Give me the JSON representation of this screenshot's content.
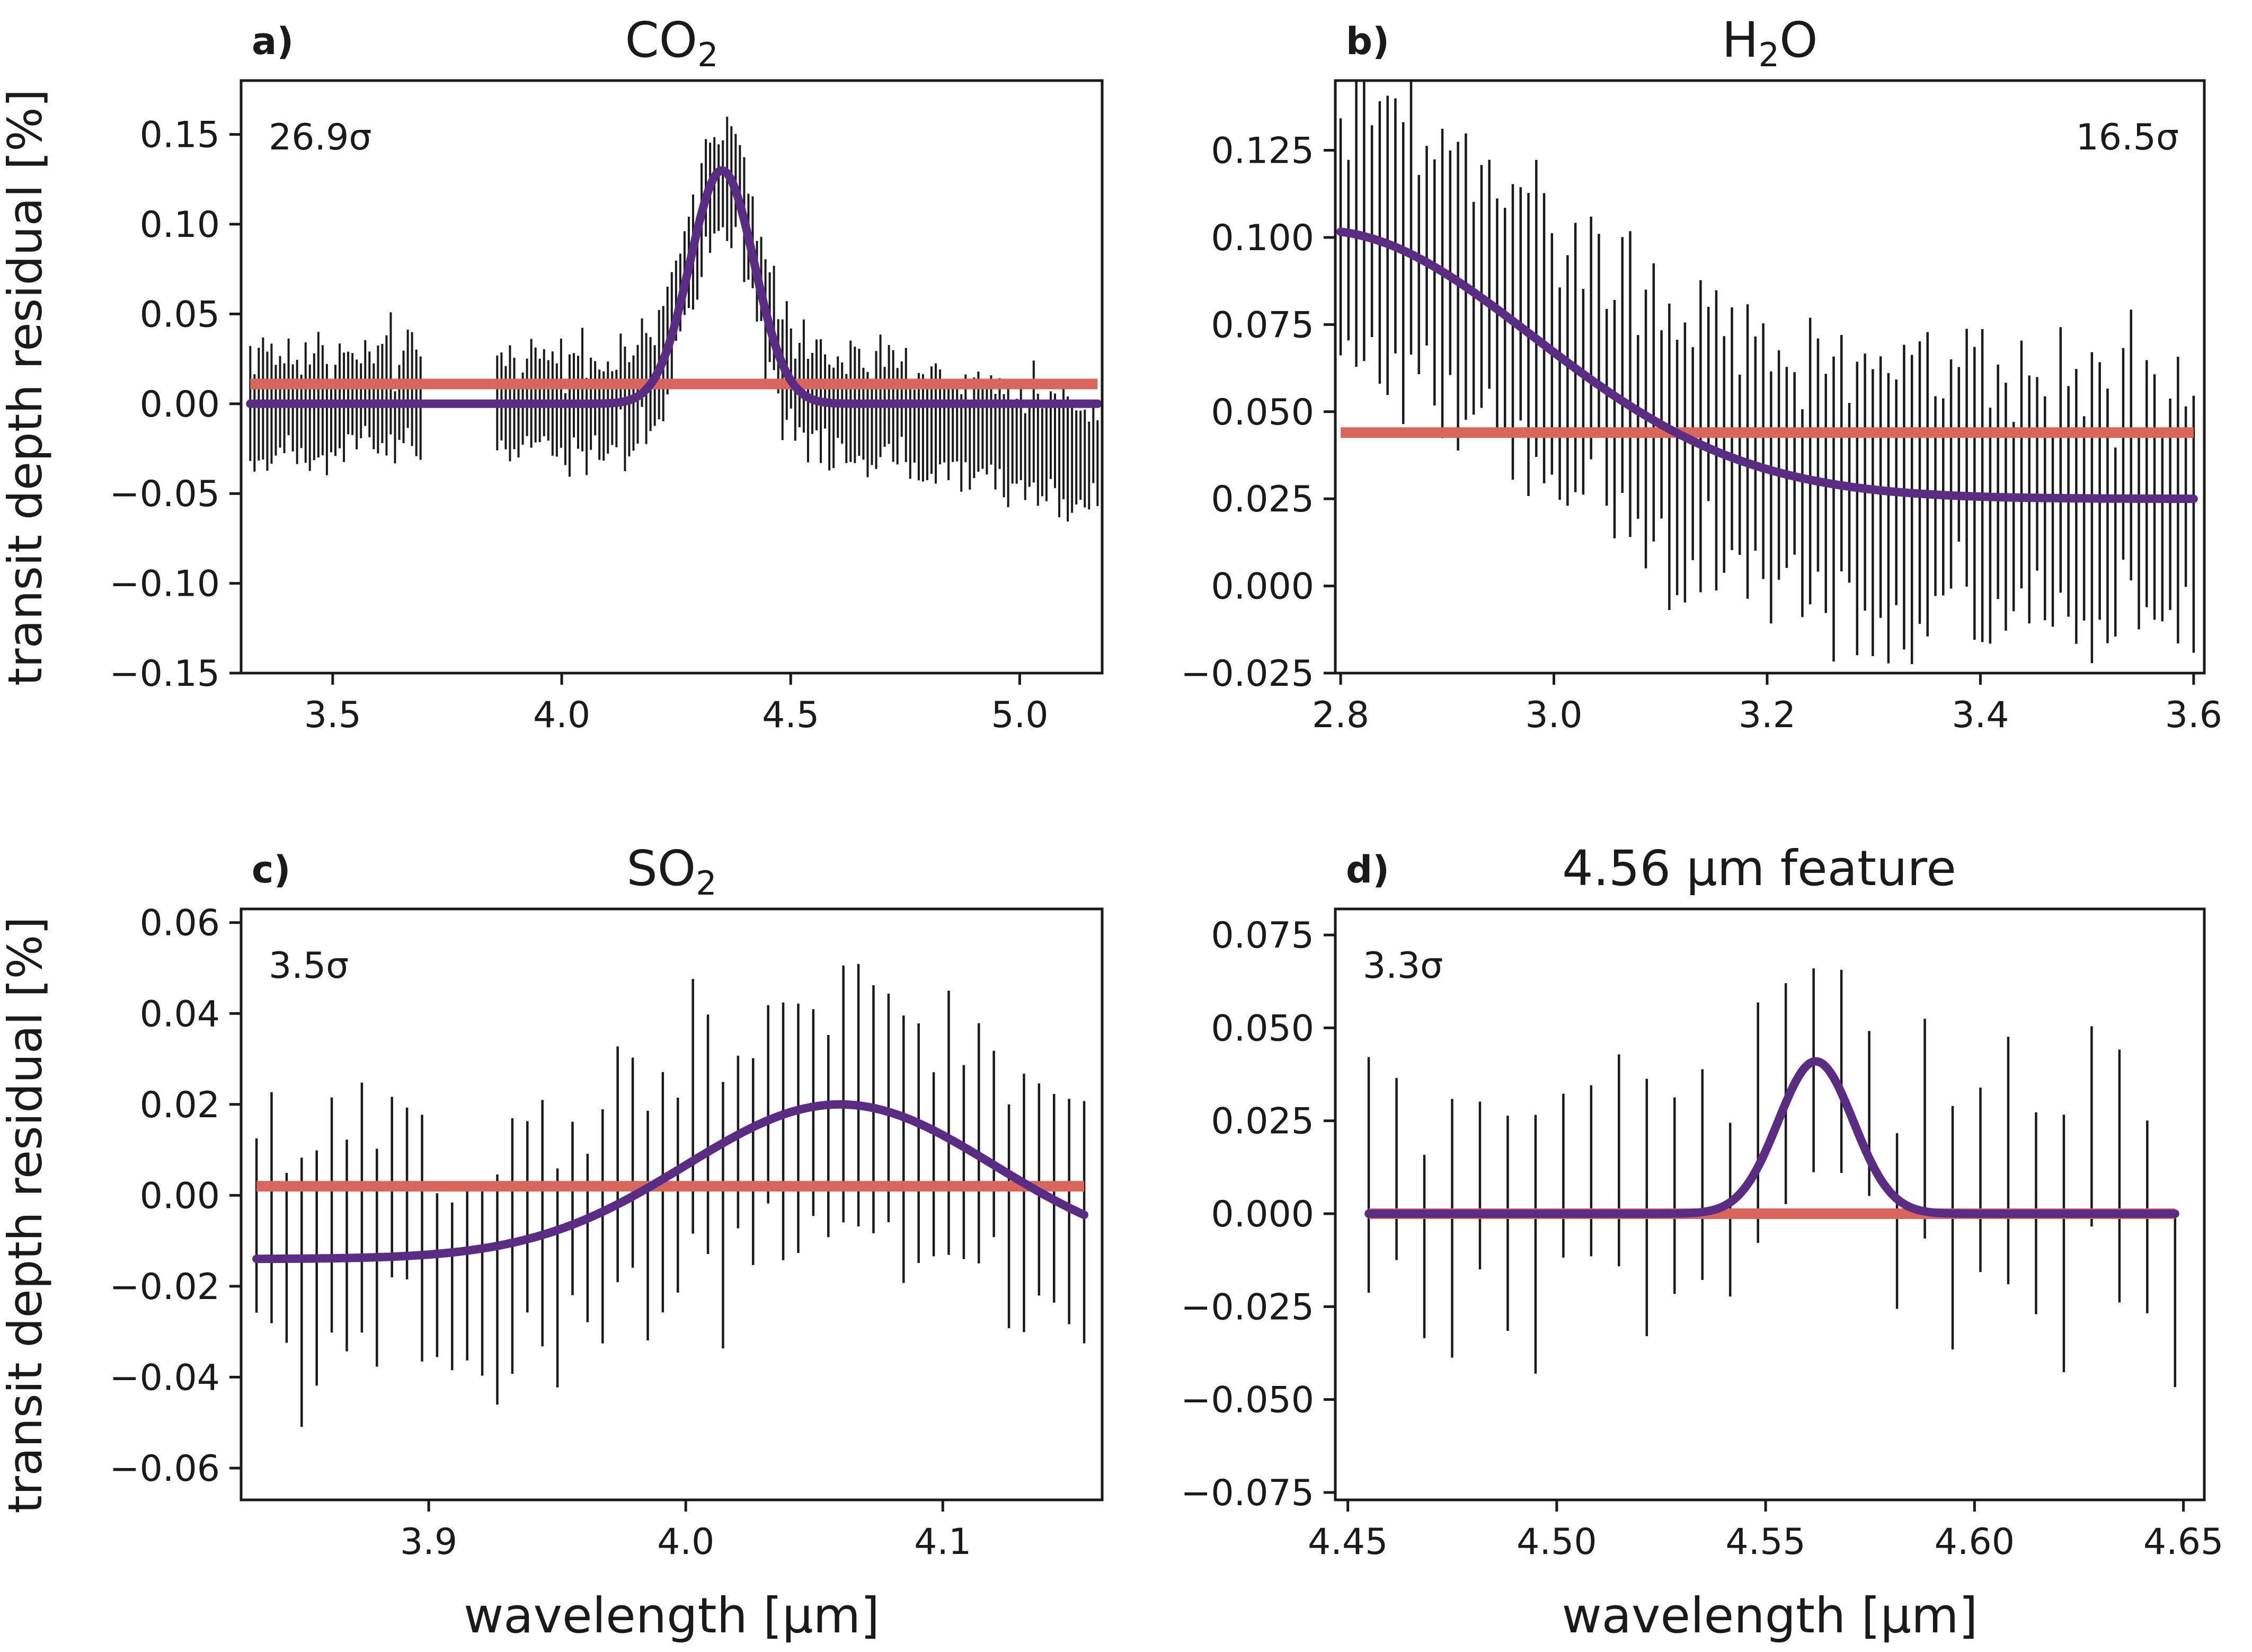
{
  "figure": {
    "ylabel": "transit depth residual [%]",
    "xlabel": "wavelength [µm]"
  },
  "colors": {
    "data": "#1a1a1a",
    "gaussian_fit": "#5b2c83",
    "flat_fit": "#d9665c",
    "frame": "#1a1a1a"
  },
  "chart_data": [
    {
      "type": "line",
      "panel_label": "a)",
      "title_main": "CO",
      "title_sub": "2",
      "title_tail": "",
      "significance": "26.9σ",
      "significance_position": "top-left",
      "xlabel": "",
      "ylabel": "transit depth residual [%]",
      "xlim": [
        3.3,
        5.18
      ],
      "ylim": [
        -0.15,
        0.18
      ],
      "xticks": [
        3.5,
        4.0,
        4.5,
        5.0
      ],
      "xtick_labels": [
        "3.5",
        "4.0",
        "4.5",
        "5.0"
      ],
      "yticks": [
        -0.15,
        -0.1,
        -0.05,
        0.0,
        0.05,
        0.1,
        0.15
      ],
      "ytick_labels": [
        "−0.15",
        "−0.10",
        "−0.05",
        "0.00",
        "0.05",
        "0.10",
        "0.15"
      ],
      "grid": false,
      "errorbars": {
        "x_start": 3.32,
        "x_end": 5.17,
        "count": 200,
        "gaps": [
          [
            3.7,
            3.85
          ]
        ],
        "err_range": [
          0.02,
          0.035
        ],
        "model": {
          "baseline": 0.0,
          "amplitude": 0.13,
          "center": 4.35,
          "sigma": 0.07,
          "slope_start": 4.6,
          "slope": -0.03
        },
        "scatter": 0.012
      },
      "series": [
        {
          "role": "gaussian",
          "x_range": [
            3.32,
            5.17
          ],
          "baseline": 0.0,
          "amplitude": 0.13,
          "center": 4.35,
          "sigma": 0.07
        },
        {
          "role": "flat",
          "x_range": [
            3.32,
            5.17
          ],
          "value": 0.011
        }
      ]
    },
    {
      "type": "line",
      "panel_label": "b)",
      "title_main": "H",
      "title_sub": "2",
      "title_tail": "O",
      "significance": "16.5σ",
      "significance_position": "top-right",
      "xlabel": "",
      "ylabel": "",
      "xlim": [
        2.795,
        3.61
      ],
      "ylim": [
        -0.025,
        0.145
      ],
      "xticks": [
        2.8,
        3.0,
        3.2,
        3.4,
        3.6
      ],
      "xtick_labels": [
        "2.8",
        "3.0",
        "3.2",
        "3.4",
        "3.6"
      ],
      "yticks": [
        -0.025,
        0.0,
        0.025,
        0.05,
        0.075,
        0.1,
        0.125
      ],
      "ytick_labels": [
        "−0.025",
        "0.000",
        "0.025",
        "0.050",
        "0.075",
        "0.100",
        "0.125"
      ],
      "grid": false,
      "errorbars": {
        "x_start": 2.8,
        "x_end": 3.6,
        "count": 110,
        "gaps": [],
        "err_range": [
          0.025,
          0.045
        ],
        "model": {
          "baseline": 0.025,
          "amplitude": 0.077,
          "center": 2.78,
          "sigma": 0.2,
          "slope_start": 99,
          "slope": 0
        },
        "scatter": 0.012
      },
      "series": [
        {
          "role": "gaussian",
          "x_range": [
            2.8,
            3.6
          ],
          "baseline": 0.025,
          "amplitude": 0.077,
          "center": 2.78,
          "sigma": 0.2
        },
        {
          "role": "flat",
          "x_range": [
            2.8,
            3.6
          ],
          "value": 0.044
        }
      ]
    },
    {
      "type": "line",
      "panel_label": "c)",
      "title_main": "SO",
      "title_sub": "2",
      "title_tail": "",
      "significance": "3.5σ",
      "significance_position": "top-left",
      "xlabel": "wavelength [µm]",
      "ylabel": "transit depth residual [%]",
      "xlim": [
        3.827,
        4.162
      ],
      "ylim": [
        -0.067,
        0.063
      ],
      "xticks": [
        3.9,
        4.0,
        4.1
      ],
      "xtick_labels": [
        "3.9",
        "4.0",
        "4.1"
      ],
      "yticks": [
        -0.06,
        -0.04,
        -0.02,
        0.0,
        0.02,
        0.04,
        0.06
      ],
      "ytick_labels": [
        "−0.06",
        "−0.04",
        "−0.02",
        "0.00",
        "0.02",
        "0.04",
        "0.06"
      ],
      "grid": false,
      "errorbars": {
        "x_start": 3.833,
        "x_end": 4.155,
        "count": 56,
        "gaps": [],
        "err_range": [
          0.018,
          0.03
        ],
        "model": {
          "baseline": -0.014,
          "amplitude": 0.034,
          "center": 4.06,
          "sigma": 0.06,
          "slope_start": 99,
          "slope": 0
        },
        "scatter": 0.012
      },
      "series": [
        {
          "role": "gaussian",
          "x_range": [
            3.833,
            4.155
          ],
          "baseline": -0.014,
          "amplitude": 0.034,
          "center": 4.06,
          "sigma": 0.06
        },
        {
          "role": "flat",
          "x_range": [
            3.833,
            4.155
          ],
          "value": 0.002
        }
      ]
    },
    {
      "type": "line",
      "panel_label": "d)",
      "title_main": "4.56 µm feature",
      "title_sub": "",
      "title_tail": "",
      "significance": "3.3σ",
      "significance_position": "top-left",
      "xlabel": "wavelength [µm]",
      "ylabel": "",
      "xlim": [
        4.447,
        4.655
      ],
      "ylim": [
        -0.077,
        0.082
      ],
      "xticks": [
        4.45,
        4.5,
        4.55,
        4.6,
        4.65
      ],
      "xtick_labels": [
        "4.45",
        "4.50",
        "4.55",
        "4.60",
        "4.65"
      ],
      "yticks": [
        -0.075,
        -0.05,
        -0.025,
        0.0,
        0.025,
        0.05,
        0.075
      ],
      "ytick_labels": [
        "−0.075",
        "−0.050",
        "−0.025",
        "0.000",
        "0.025",
        "0.050",
        "0.075"
      ],
      "grid": false,
      "errorbars": {
        "x_start": 4.455,
        "x_end": 4.648,
        "count": 30,
        "gaps": [],
        "err_range": [
          0.022,
          0.035
        ],
        "model": {
          "baseline": 0.0,
          "amplitude": 0.041,
          "center": 4.562,
          "sigma": 0.009,
          "slope_start": 99,
          "slope": 0
        },
        "scatter": 0.022
      },
      "series": [
        {
          "role": "gaussian",
          "x_range": [
            4.455,
            4.648
          ],
          "baseline": 0.0,
          "amplitude": 0.041,
          "center": 4.562,
          "sigma": 0.009
        },
        {
          "role": "flat",
          "x_range": [
            4.455,
            4.648
          ],
          "value": 0.0
        }
      ]
    }
  ]
}
